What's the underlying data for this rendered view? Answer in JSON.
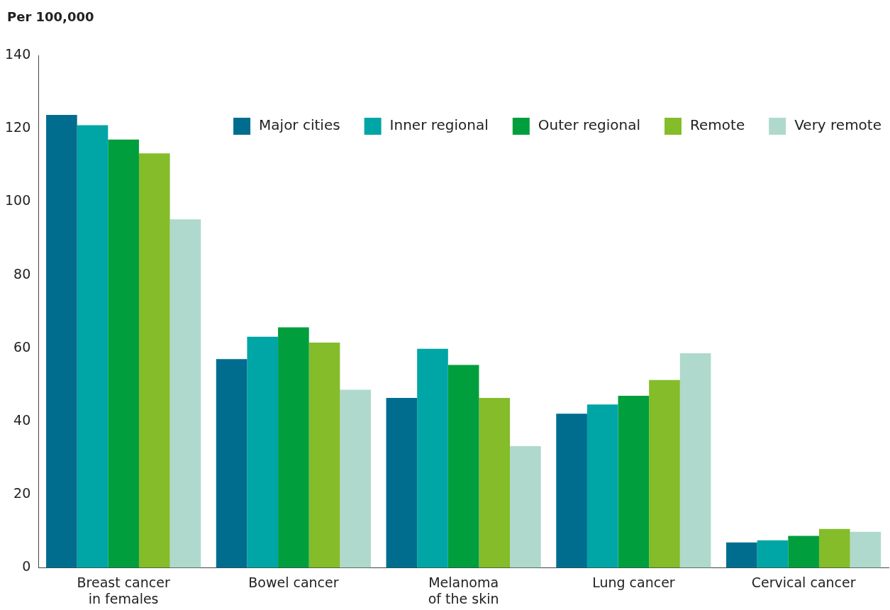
{
  "chart_data": {
    "type": "bar",
    "ylabel": "Per 100,000",
    "categories": [
      "Breast cancer in females",
      "Bowel cancer",
      "Melanoma of the skin",
      "Lung cancer",
      "Cervical cancer"
    ],
    "series": [
      {
        "name": "Major cities",
        "color": "#006d8f",
        "values": [
          123.7,
          57.0,
          46.4,
          42.1,
          6.9
        ]
      },
      {
        "name": "Inner regional",
        "color": "#00a5a6",
        "values": [
          120.9,
          63.1,
          59.8,
          44.6,
          7.5
        ]
      },
      {
        "name": "Outer regional",
        "color": "#009e3d",
        "values": [
          117.0,
          65.7,
          55.4,
          47.0,
          8.7
        ]
      },
      {
        "name": "Remote",
        "color": "#84bc2a",
        "values": [
          113.2,
          61.5,
          46.4,
          51.3,
          10.6
        ]
      },
      {
        "name": "Very remote",
        "color": "#afd9cc",
        "values": [
          95.2,
          48.6,
          33.2,
          58.6,
          9.8
        ]
      }
    ],
    "ylim": [
      0,
      140
    ],
    "yticks": [
      0,
      20,
      40,
      60,
      80,
      100,
      120,
      140
    ],
    "grid": false,
    "legend": "top right"
  }
}
